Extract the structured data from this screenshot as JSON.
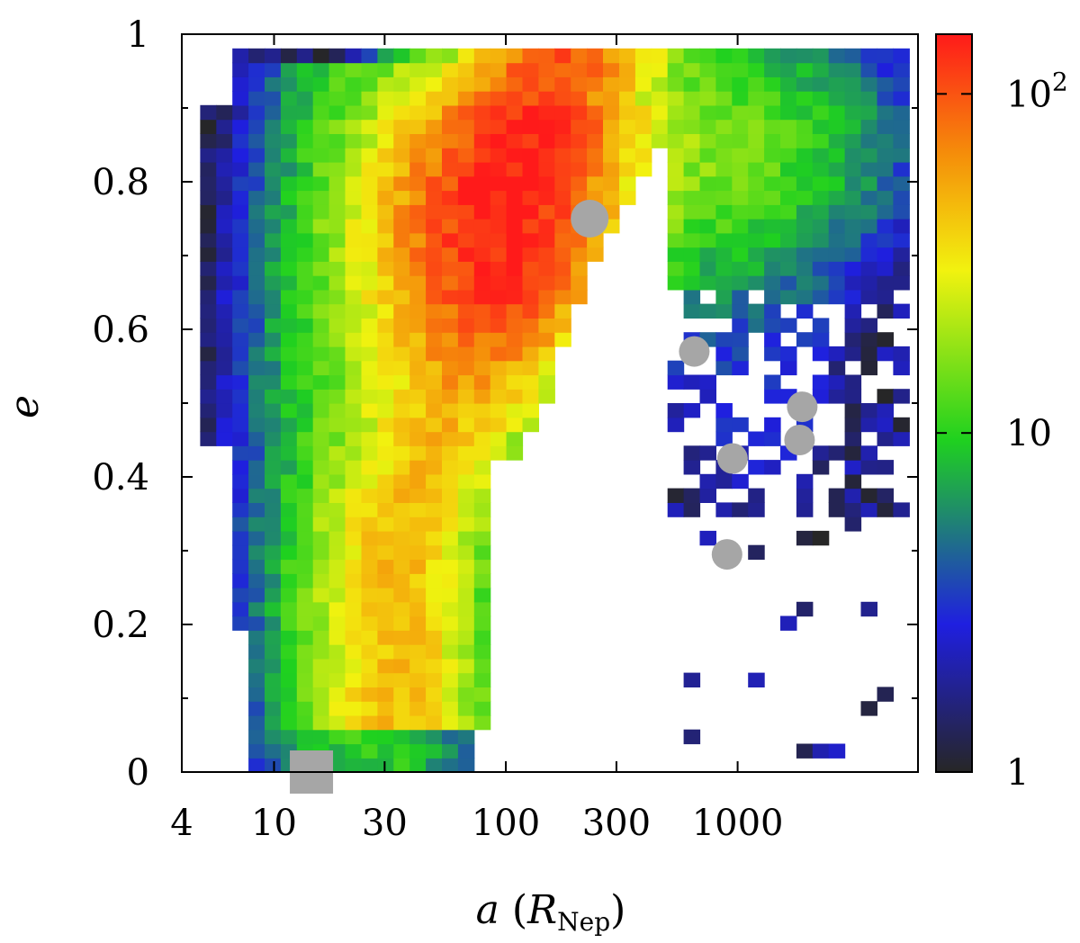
{
  "chart_data": {
    "type": "heatmap",
    "title": "",
    "xlabel": {
      "var": "a",
      "open": " (",
      "sym": "R",
      "sub": "Nep",
      "close": ")"
    },
    "ylabel": "e",
    "x_scale": "log",
    "xlim": [
      4,
      6000
    ],
    "ylim": [
      0,
      1
    ],
    "x_ticks": [
      {
        "value": 4,
        "label": "4"
      },
      {
        "value": 10,
        "label": "10"
      },
      {
        "value": 30,
        "label": "30"
      },
      {
        "value": 100,
        "label": "100"
      },
      {
        "value": 300,
        "label": "300"
      },
      {
        "value": 1000,
        "label": "1000"
      }
    ],
    "y_ticks": [
      {
        "value": 0,
        "label": "0"
      },
      {
        "value": 0.2,
        "label": "0.2"
      },
      {
        "value": 0.4,
        "label": "0.4"
      },
      {
        "value": 0.6,
        "label": "0.6"
      },
      {
        "value": 0.8,
        "label": "0.8"
      },
      {
        "value": 1,
        "label": "1"
      }
    ],
    "colorbar": {
      "scale": "log",
      "range": [
        1,
        150
      ],
      "ticks": [
        {
          "value": 1,
          "label": "1"
        },
        {
          "value": 10,
          "label": "10"
        },
        {
          "value": 100,
          "label": "10",
          "sup": "2"
        }
      ],
      "stops": [
        "#262626",
        "#1f1fe0",
        "#1fd11f",
        "#f2f20f",
        "#f58c0a",
        "#ff1a1a"
      ]
    },
    "grid": false,
    "cells": {
      "nx": 44,
      "ny": 52,
      "x_range": [
        4.8,
        5500
      ],
      "y_range": [
        0,
        1
      ],
      "note_regions": [
        {
          "a_min": 6,
          "a_max": 80,
          "e_min": 0.0,
          "e_max": 0.75
        },
        {
          "a_min": 30,
          "a_max": 500,
          "e_min": 0.45,
          "e_max": 0.95
        },
        {
          "a_min": 500,
          "a_max": 5500,
          "e_min": 0.2,
          "e_max": 0.95
        }
      ]
    },
    "markers": [
      {
        "shape": "circle",
        "a": 230,
        "e": 0.75,
        "size": "large"
      },
      {
        "shape": "circle",
        "a": 650,
        "e": 0.57,
        "size": "medium"
      },
      {
        "shape": "circle",
        "a": 1900,
        "e": 0.495,
        "size": "medium"
      },
      {
        "shape": "circle",
        "a": 1850,
        "e": 0.45,
        "size": "medium"
      },
      {
        "shape": "circle",
        "a": 950,
        "e": 0.425,
        "size": "medium"
      },
      {
        "shape": "circle",
        "a": 900,
        "e": 0.295,
        "size": "medium"
      },
      {
        "shape": "square",
        "a": 14.5,
        "e": 0.0,
        "size": "medium"
      }
    ],
    "marker_color": "#a6a6a6"
  }
}
